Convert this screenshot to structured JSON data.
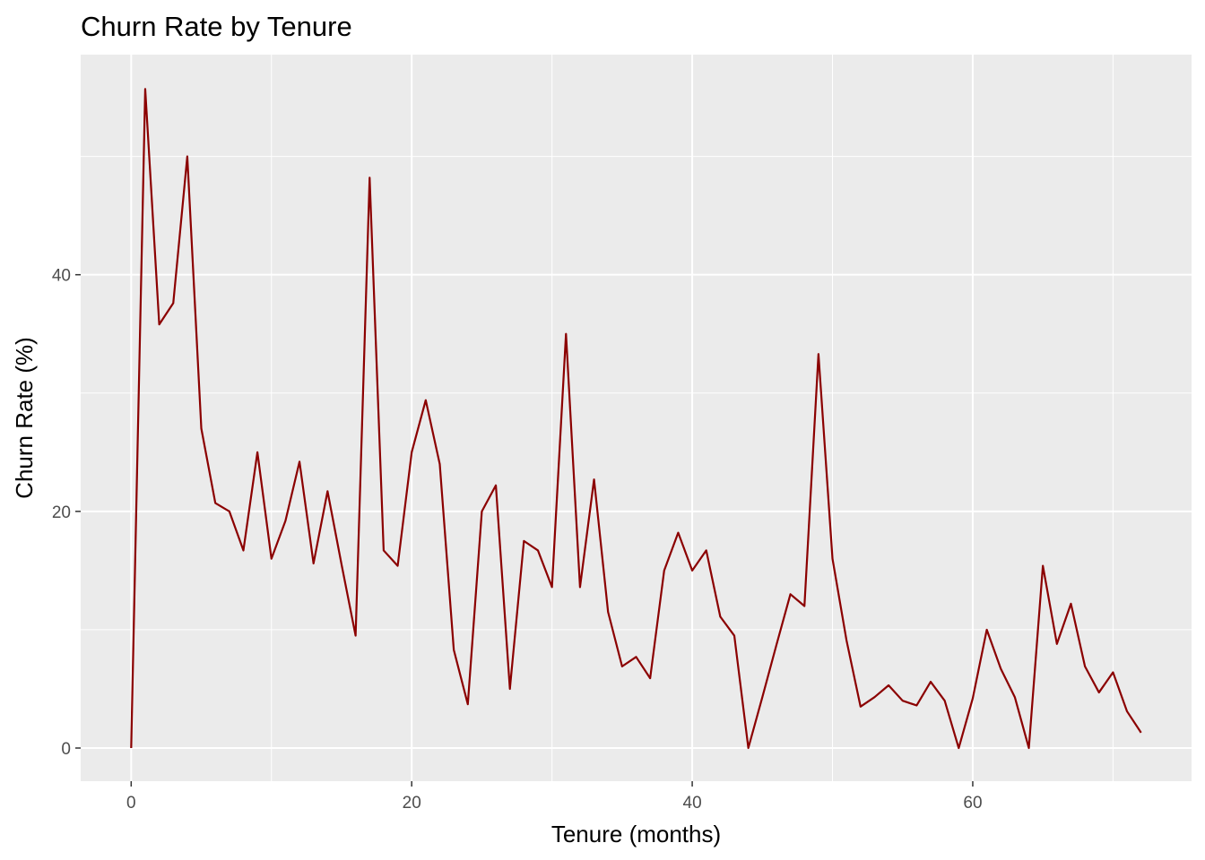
{
  "chart_data": {
    "type": "line",
    "title": "Churn Rate by Tenure",
    "xlabel": "Tenure (months)",
    "ylabel": "Churn Rate (%)",
    "xlim": [
      -3.6,
      75.6
    ],
    "ylim": [
      -2.8,
      58.6
    ],
    "x_ticks": [
      0,
      20,
      40,
      60
    ],
    "y_ticks": [
      0,
      20,
      40
    ],
    "x_tick_labels": [
      "0",
      "20",
      "40",
      "60"
    ],
    "y_tick_labels": [
      "0",
      "20",
      "40"
    ],
    "grid": true,
    "panel_background": "#EBEBEB",
    "grid_color": "#FFFFFF",
    "line_color": "#8B0000",
    "series": [
      {
        "x": [
          0,
          1,
          2,
          3,
          4,
          5,
          6,
          7,
          8,
          9,
          10,
          11,
          12,
          13,
          14,
          15,
          16,
          17,
          18,
          19,
          20,
          21,
          22,
          23,
          24,
          25,
          26,
          27,
          28,
          29,
          30,
          31,
          32,
          33,
          34,
          35,
          36,
          37,
          38,
          39,
          40,
          41,
          42,
          43,
          44,
          45,
          46,
          47,
          48,
          49,
          50,
          51,
          52,
          53,
          54,
          55,
          56,
          57,
          58,
          59,
          60,
          61,
          62,
          63,
          64,
          65,
          66,
          67,
          68,
          69,
          70,
          71,
          72
        ],
        "values": [
          0,
          55.7,
          35.8,
          37.6,
          50,
          27,
          20.7,
          20,
          16.7,
          25,
          16,
          19.2,
          24.2,
          15.6,
          21.7,
          15.5,
          9.5,
          48.2,
          16.7,
          15.4,
          25,
          29.4,
          24,
          8.3,
          3.7,
          20,
          22.2,
          5,
          17.5,
          16.7,
          13.6,
          35,
          13.6,
          22.7,
          11.5,
          6.9,
          7.7,
          5.9,
          15,
          18.2,
          15,
          16.7,
          11.1,
          9.5,
          0,
          4.3,
          8.7,
          13,
          12,
          33.3,
          16,
          9.1,
          3.5,
          4.3,
          5.3,
          4,
          3.6,
          5.6,
          4,
          0,
          4.2,
          10,
          6.7,
          4.3,
          0,
          15.4,
          8.8,
          12.2,
          6.9,
          4.7,
          6.4,
          3.1,
          1.3
        ]
      }
    ]
  }
}
